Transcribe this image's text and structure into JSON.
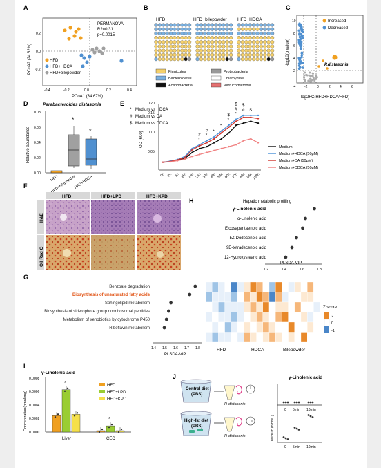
{
  "panels": {
    "A": "A",
    "B": "B",
    "C": "C",
    "D": "D",
    "E": "E",
    "F": "F",
    "G": "G",
    "H": "H",
    "I": "I",
    "J": "J"
  },
  "colors": {
    "HFD": "#f0a020",
    "HDCA": "#5090d0",
    "bile": "#a0a0a0",
    "firmicutes": "#f5d06a",
    "bacteroidetes": "#7ab0e0",
    "actinobacteria": "#111111",
    "proteobacteria": "#999999",
    "chlamydiae": "#ffffff",
    "verrucomicrobia": "#e57070",
    "medium": "#111111",
    "hdca": "#4a90d9",
    "ca": "#d0342c",
    "cdca": "#f08080",
    "lpd": "#9acd32",
    "kpd": "#f5e04a",
    "highlight": "#e05010"
  },
  "panelA": {
    "permanova": "PERMANOVA",
    "r2": "R2=0.31",
    "p": "p=0.0015",
    "xlabel": "PCoA1 (34.67%)",
    "ylabel": "PCoA2 (24.62%)",
    "xticks": [
      "-0.4",
      "-0.2",
      "0.0",
      "0.2",
      "0.4"
    ],
    "yticks": [
      "0.2",
      "0.0",
      "-0.2"
    ],
    "legend": [
      "HFD",
      "HFD+HDCA",
      "HFD+bilepowder"
    ]
  },
  "panelB": {
    "groups": [
      "HFD",
      "HFD+bilepowder",
      "HFD+HDCA"
    ],
    "legend": [
      "Firmicutes",
      "Bacteroidetes",
      "Actinobacteria",
      "Proteobacteria",
      "Chlamydiae",
      "Verrucomicrobia"
    ]
  },
  "panelC": {
    "legend": [
      "Increased",
      "Decreased"
    ],
    "label": "P.distasonis",
    "xlabel": "log2FC(HFD+HDCA/HFD)",
    "ylabel": "-log10(p value)",
    "xticks": [
      "-4",
      "-2",
      "0",
      "2",
      "4",
      "6"
    ],
    "yticks": [
      "2",
      "4",
      "6",
      "8",
      "10"
    ]
  },
  "panelD": {
    "title": "Parabacteroides distasonis",
    "ylabel": "Relative abundance",
    "yticks": [
      "0.00",
      "0.02",
      "0.04",
      "0.06",
      "0.08"
    ],
    "groups": [
      "HFD",
      "HFD+bilepowder",
      "HFD+HDCA"
    ],
    "stars": [
      "*",
      "*"
    ]
  },
  "panelE": {
    "legend_sig": [
      "Medium vs HDCA",
      "Medium vs CA",
      "Medium vs CDCA"
    ],
    "sig_symbols": [
      "*",
      "#",
      "$"
    ],
    "ylabel": "OD (600)",
    "yticks": [
      "0.05",
      "0.10",
      "0.15",
      "0.20"
    ],
    "xticks": [
      "0h",
      "2h",
      "5h",
      "11h",
      "24h",
      "26h",
      "37h",
      "48h",
      "53h",
      "60h",
      "72h",
      "83h",
      "96h",
      "108h"
    ],
    "series_names": [
      "Medium",
      "Medium+HDCA (50μM)",
      "Medium+CA (50μM)",
      "Medium+CDCA (50μM)"
    ]
  },
  "chart_data": [
    {
      "type": "line",
      "panel": "E",
      "ylabel": "OD (600)",
      "ylim": [
        0.03,
        0.2
      ],
      "x": [
        "0h",
        "2h",
        "5h",
        "11h",
        "24h",
        "26h",
        "37h",
        "48h",
        "53h",
        "60h",
        "72h",
        "83h",
        "96h",
        "108h"
      ],
      "series": [
        {
          "name": "Medium",
          "values": [
            0.05,
            0.052,
            0.055,
            0.06,
            0.075,
            0.085,
            0.09,
            0.1,
            0.11,
            0.125,
            0.145,
            0.15,
            0.155,
            0.15
          ]
        },
        {
          "name": "Medium+HDCA (50μM)",
          "values": [
            0.05,
            0.053,
            0.057,
            0.065,
            0.085,
            0.095,
            0.105,
            0.115,
            0.13,
            0.145,
            0.16,
            0.17,
            0.17,
            0.17
          ]
        },
        {
          "name": "Medium+CA (50μM)",
          "values": [
            0.05,
            0.052,
            0.056,
            0.062,
            0.082,
            0.092,
            0.1,
            0.11,
            0.125,
            0.14,
            0.155,
            0.165,
            0.165,
            0.162
          ]
        },
        {
          "name": "Medium+CDCA (50μM)",
          "values": [
            0.05,
            0.051,
            0.054,
            0.058,
            0.065,
            0.07,
            0.075,
            0.08,
            0.085,
            0.09,
            0.095,
            0.105,
            0.11,
            0.1
          ]
        }
      ]
    },
    {
      "type": "scatter",
      "panel": "G",
      "xlabel": "PLSDA-VIP",
      "xlim": [
        1.4,
        1.8
      ],
      "categories": [
        "Benzoate degradation",
        "Biosynthesis of unsaturated fatty acids",
        "Sphingolipid metabolism",
        "Biosynthesis of siderophore group nonribosomal peptides",
        "Metabolism of xenobiotics by cytochrome P450",
        "Riboflavin metabolism"
      ],
      "values": [
        1.78,
        1.73,
        1.56,
        1.54,
        1.52,
        1.5
      ]
    },
    {
      "type": "scatter",
      "panel": "H",
      "xlabel": "PLSDA-VIP",
      "xlim": [
        1.2,
        1.8
      ],
      "categories": [
        "γ-Linolenic acid",
        "α-Linolenic acid",
        "Eicosapentaenoic acid",
        "5Z-Dodecenoic acid",
        "9E-tetradecenoic acid",
        "12-Hydroxystearic acid"
      ],
      "values": [
        1.75,
        1.65,
        1.62,
        1.55,
        1.5,
        1.43
      ]
    },
    {
      "type": "bar",
      "panel": "I",
      "ylabel": "Concentration(nmol/mg)",
      "categories": [
        "Liver",
        "CEC"
      ],
      "series": [
        {
          "name": "HFD",
          "values": [
            0.00024,
            2e-05
          ]
        },
        {
          "name": "HFD+LPD",
          "values": [
            0.00062,
            9e-05
          ]
        },
        {
          "name": "HFD+KPD",
          "values": [
            0.00026,
            2e-05
          ]
        }
      ]
    },
    {
      "type": "scatter",
      "panel": "J",
      "categories": [
        "0",
        "5min",
        "10min"
      ],
      "series": [
        {
          "name": "Control diet",
          "values": [
            1,
            1,
            1
          ]
        },
        {
          "name": "High-fat diet",
          "values": [
            1,
            4.5,
            9
          ]
        }
      ]
    }
  ],
  "panelF": {
    "cols": [
      "HFD",
      "HFD+LPD",
      "HFD+KPD"
    ],
    "rows": [
      "H&E",
      "Oil Red O"
    ]
  },
  "panelG": {
    "highlight": "Biosynthesis of unsaturated fatty acids",
    "xlabel": "PLSDA-VIP",
    "xticks": [
      "1.4",
      "1.5",
      "1.6",
      "1.7",
      "1.8"
    ],
    "groups": [
      "HFD",
      "HDCA",
      "Bilepowder"
    ],
    "zscore": "Z score",
    "zticks": [
      "2",
      "0",
      "-1"
    ]
  },
  "panelH": {
    "title": "Hepatic metabolic profiling",
    "xlabel": "PLSDA-VIP",
    "xticks": [
      "1.2",
      "1.4",
      "1.6",
      "1.8"
    ]
  },
  "panelI": {
    "title": "γ-Linolenic acid",
    "ylabel": "Concentration(nmol/mg)",
    "yticks": [
      "0.0000",
      "0.0002",
      "0.0004",
      "0.0006",
      "0.0008"
    ],
    "legend": [
      "HFD",
      "HFD+LPD",
      "HFD+KPD"
    ],
    "groups": [
      "Liver",
      "CEC"
    ]
  },
  "panelJ": {
    "title": "γ-Linolenic acid",
    "box1_l1": "Control diet",
    "box1_l2": "(PBS)",
    "box2_l1": "High-fat diet",
    "box2_l2": "(PBS)",
    "bug": "P. distasonis",
    "ylabel": "Medium (nmol/L)",
    "xticks": [
      "0",
      "5min",
      "10min"
    ]
  }
}
